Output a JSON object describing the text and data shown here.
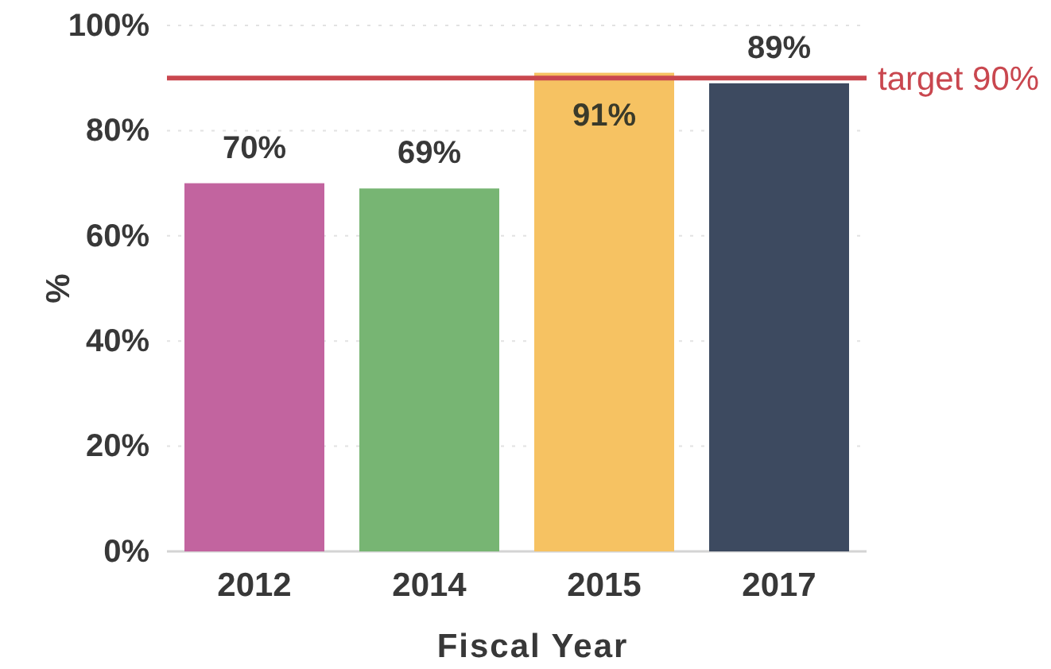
{
  "chart_data": {
    "type": "bar",
    "categories": [
      "2012",
      "2014",
      "2015",
      "2017"
    ],
    "values": [
      70,
      69,
      91,
      89
    ],
    "colors": [
      "#c2649f",
      "#77b573",
      "#f6c262",
      "#3d4a60"
    ],
    "value_labels": [
      "70%",
      "69%",
      "91%",
      "89%"
    ],
    "xlabel": "Fiscal Year",
    "ylabel": "%",
    "ylim": [
      0,
      100
    ],
    "yticks": [
      {
        "value": 0,
        "label": "0%"
      },
      {
        "value": 20,
        "label": "20%"
      },
      {
        "value": 40,
        "label": "40%"
      },
      {
        "value": 60,
        "label": "60%"
      },
      {
        "value": 80,
        "label": "80%"
      },
      {
        "value": 100,
        "label": "100%"
      }
    ],
    "grid": "y",
    "ref_lines": [
      {
        "axis": "y",
        "value": 90,
        "label": "target 90%",
        "color": "#c9474f"
      }
    ]
  }
}
